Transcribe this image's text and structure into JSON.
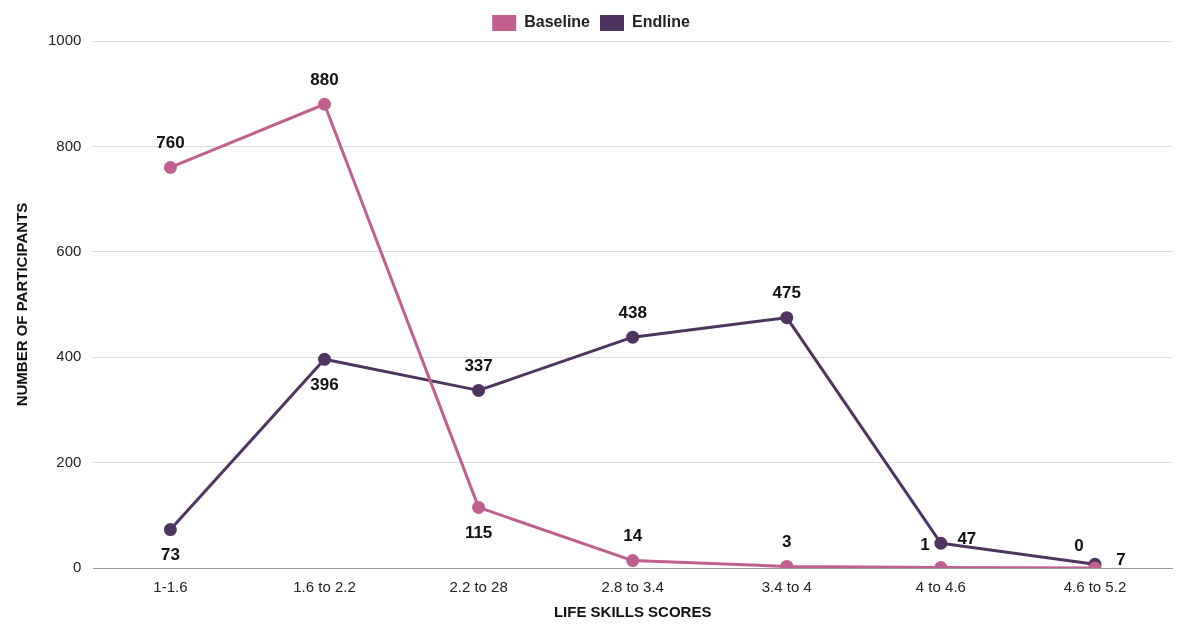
{
  "chart_data": {
    "type": "line",
    "xlabel": "LIFE SKILLS SCORES",
    "ylabel": "NUMBER OF PARTICIPANTS",
    "categories": [
      "1-1.6",
      "1.6 to 2.2",
      "2.2 to 28",
      "2.8 to 3.4",
      "3.4 to 4",
      "4 to 4.6",
      "4.6 to 5.2"
    ],
    "series": [
      {
        "name": "Baseline",
        "color": "#c0608f",
        "values": [
          760,
          880,
          115,
          14,
          3,
          1,
          0
        ]
      },
      {
        "name": "Endline",
        "color": "#4e3560",
        "values": [
          73,
          396,
          337,
          438,
          475,
          47,
          7
        ]
      }
    ],
    "ylim": [
      0,
      1000
    ],
    "yticks": [
      0,
      200,
      400,
      600,
      800,
      1000
    ],
    "grid": "y",
    "legend": "top",
    "marker": "circle",
    "line_style": "solid",
    "data_labels": true
  }
}
